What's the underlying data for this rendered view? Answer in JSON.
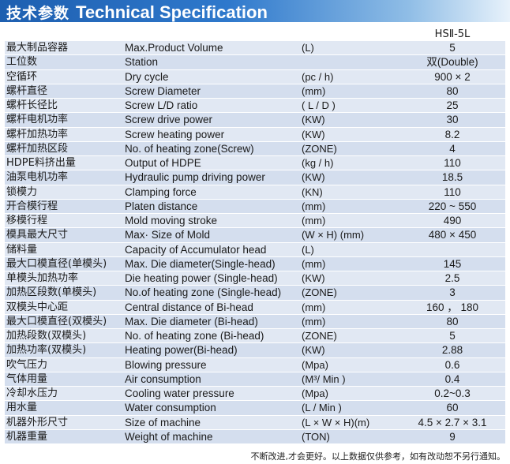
{
  "header": {
    "title_zh": "技术参数",
    "title_en": "Technical Specification"
  },
  "model": "HSⅡ-5L",
  "rows": [
    {
      "zh": "最大制品容器",
      "en": "Max.Product Volume",
      "unit": "(L)",
      "value": "5"
    },
    {
      "zh": "工位数",
      "en": "Station",
      "unit": "",
      "value": "双(Double)"
    },
    {
      "zh": "空循环",
      "en": "Dry cycle",
      "unit": "(pc / h)",
      "value": "900 × 2"
    },
    {
      "zh": "螺杆直径",
      "en": "Screw Diameter",
      "unit": "(mm)",
      "value": "80"
    },
    {
      "zh": "螺杆长径比",
      "en": "Screw L/D ratio",
      "unit": "( L / D )",
      "value": "25"
    },
    {
      "zh": "螺杆电机功率",
      "en": "Screw drive power",
      "unit": "(KW)",
      "value": "30"
    },
    {
      "zh": "螺杆加热功率",
      "en": "Screw heating power",
      "unit": "(KW)",
      "value": "8.2"
    },
    {
      "zh": "螺杆加热区段",
      "en": "No. of heating zone(Screw)",
      "unit": "(ZONE)",
      "value": "4"
    },
    {
      "zh": "HDPE料挤出量",
      "en": "Output of HDPE",
      "unit": "(kg / h)",
      "value": "110"
    },
    {
      "zh": "油泵电机功率",
      "en": "Hydraulic pump driving power",
      "unit": "(KW)",
      "value": "18.5"
    },
    {
      "zh": "锁模力",
      "en": "Clamping force",
      "unit": "(KN)",
      "value": "110"
    },
    {
      "zh": "开合模行程",
      "en": "Platen distance",
      "unit": "(mm)",
      "value": "220 ~ 550"
    },
    {
      "zh": "移模行程",
      "en": "Mold moving stroke",
      "unit": "(mm)",
      "value": "490"
    },
    {
      "zh": "模具最大尺寸",
      "en": "Max· Size of Mold",
      "unit": "(W × H) (mm)",
      "value": "480 × 450"
    },
    {
      "zh": "储料量",
      "en": "Capacity of Accumulator head",
      "unit": "(L)",
      "value": ""
    },
    {
      "zh": "最大口模直径(单模头)",
      "en": "Max. Die diameter(Single-head)",
      "unit": "(mm)",
      "value": "145"
    },
    {
      "zh": "单模头加热功率",
      "en": "Die heating power (Single-head)",
      "unit": "(KW)",
      "value": "2.5"
    },
    {
      "zh": "加热区段数(单模头)",
      "en": "No.of heating zone (Single-head)",
      "unit": "(ZONE)",
      "value": "3"
    },
    {
      "zh": "双模头中心距",
      "en": "Central distance of Bi-head",
      "unit": "(mm)",
      "value": "160 ， 180"
    },
    {
      "zh": "最大口模直径(双模头)",
      "en": "Max. Die diameter (Bi-head)",
      "unit": "(mm)",
      "value": "80"
    },
    {
      "zh": "加热段数(双模头)",
      "en": "No. of heating zone (Bi-head)",
      "unit": "(ZONE)",
      "value": "5"
    },
    {
      "zh": "加热功率(双模头)",
      "en": "Heating power(Bi-head)",
      "unit": "(KW)",
      "value": "2.88"
    },
    {
      "zh": "吹气压力",
      "en": "Blowing pressure",
      "unit": "(Mpa)",
      "value": "0.6"
    },
    {
      "zh": "气体用量",
      "en": "Air consumption",
      "unit": "(M³/ Min )",
      "value": "0.4"
    },
    {
      "zh": "冷却水压力",
      "en": "Cooling water pressure",
      "unit": "(Mpa)",
      "value": "0.2~0.3"
    },
    {
      "zh": "用水量",
      "en": "Water consumption",
      "unit": "(L / Min )",
      "value": "60"
    },
    {
      "zh": "机器外形尺寸",
      "en": "Size of machine",
      "unit": "(L × W × H)(m)",
      "value": "4.5 × 2.7 × 3.1"
    },
    {
      "zh": "机器重量",
      "en": "Weight of machine",
      "unit": "(TON)",
      "value": "9"
    }
  ],
  "footer": "不断改进,才会更好。以上数据仅供参考，如有改动恕不另行通知。",
  "colors": {
    "header_start": "#1e5fb0",
    "row_light": "#e1e8f3",
    "row_dark": "#d4deee"
  }
}
